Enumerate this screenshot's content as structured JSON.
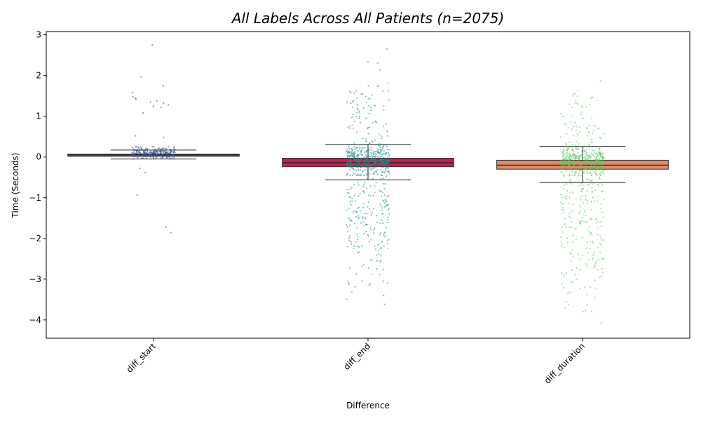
{
  "chart_data": {
    "type": "box",
    "title": "All Labels Across All Patients (n=2075)",
    "xlabel": "Difference",
    "ylabel": "Time (Seconds)",
    "ylim": [
      -4.45,
      3.08
    ],
    "yticks": [
      3,
      2,
      1,
      0,
      -1,
      -2,
      -3,
      -4
    ],
    "ytick_labels": [
      "3",
      "2",
      "1",
      "0",
      "−1",
      "−2",
      "−3",
      "−4"
    ],
    "categories": [
      "diff_start",
      "diff_end",
      "diff_duration"
    ],
    "grid": false,
    "n": 2075,
    "boxes": [
      {
        "category": "diff_start",
        "box_color": "#3b3f6a",
        "strip_color": "#3b528b",
        "q1": 0.04,
        "median": 0.06,
        "q3": 0.07,
        "whisker_low": -0.05,
        "whisker_high": 0.17,
        "strip_core": [
          -0.05,
          0.25
        ],
        "outliers": [
          2.75,
          1.97,
          1.75,
          1.58,
          1.48,
          1.44,
          1.42,
          1.38,
          1.35,
          1.32,
          1.28,
          1.25,
          1.22,
          1.08,
          0.52,
          0.48,
          -0.28,
          -0.38,
          -0.93,
          -1.72,
          -1.86
        ]
      },
      {
        "category": "diff_end",
        "box_color": "#b8224f",
        "strip_color": "#21918c",
        "q1": -0.24,
        "median": -0.14,
        "q3": -0.03,
        "whisker_low": -0.56,
        "whisker_high": 0.31,
        "strip_core": [
          -0.45,
          0.3
        ],
        "outliers": [
          2.65,
          2.14,
          1.75,
          1.58,
          1.55,
          1.32,
          1.22,
          1.15,
          1.05,
          0.95,
          0.85,
          0.72,
          -0.85,
          -1.05,
          -1.35,
          -1.55,
          -1.75,
          -1.95,
          -2.15,
          -2.35,
          -2.55,
          -2.75,
          -2.88,
          -3.05,
          -3.62
        ]
      },
      {
        "category": "diff_duration",
        "box_color": "#e08a6a",
        "strip_color": "#5ec962",
        "q1": -0.3,
        "median": -0.2,
        "q3": -0.08,
        "whisker_low": -0.63,
        "whisker_high": 0.26,
        "strip_core": [
          -0.45,
          0.25
        ],
        "outliers": [
          1.87,
          1.55,
          1.5,
          1.45,
          1.32,
          1.25,
          1.1,
          0.95,
          0.85,
          0.75,
          -0.85,
          -1.05,
          -1.35,
          -1.65,
          -1.85,
          -2.1,
          -2.35,
          -2.6,
          -2.85,
          -3.08,
          -3.38,
          -3.62,
          -3.7,
          -4.08
        ]
      }
    ]
  }
}
